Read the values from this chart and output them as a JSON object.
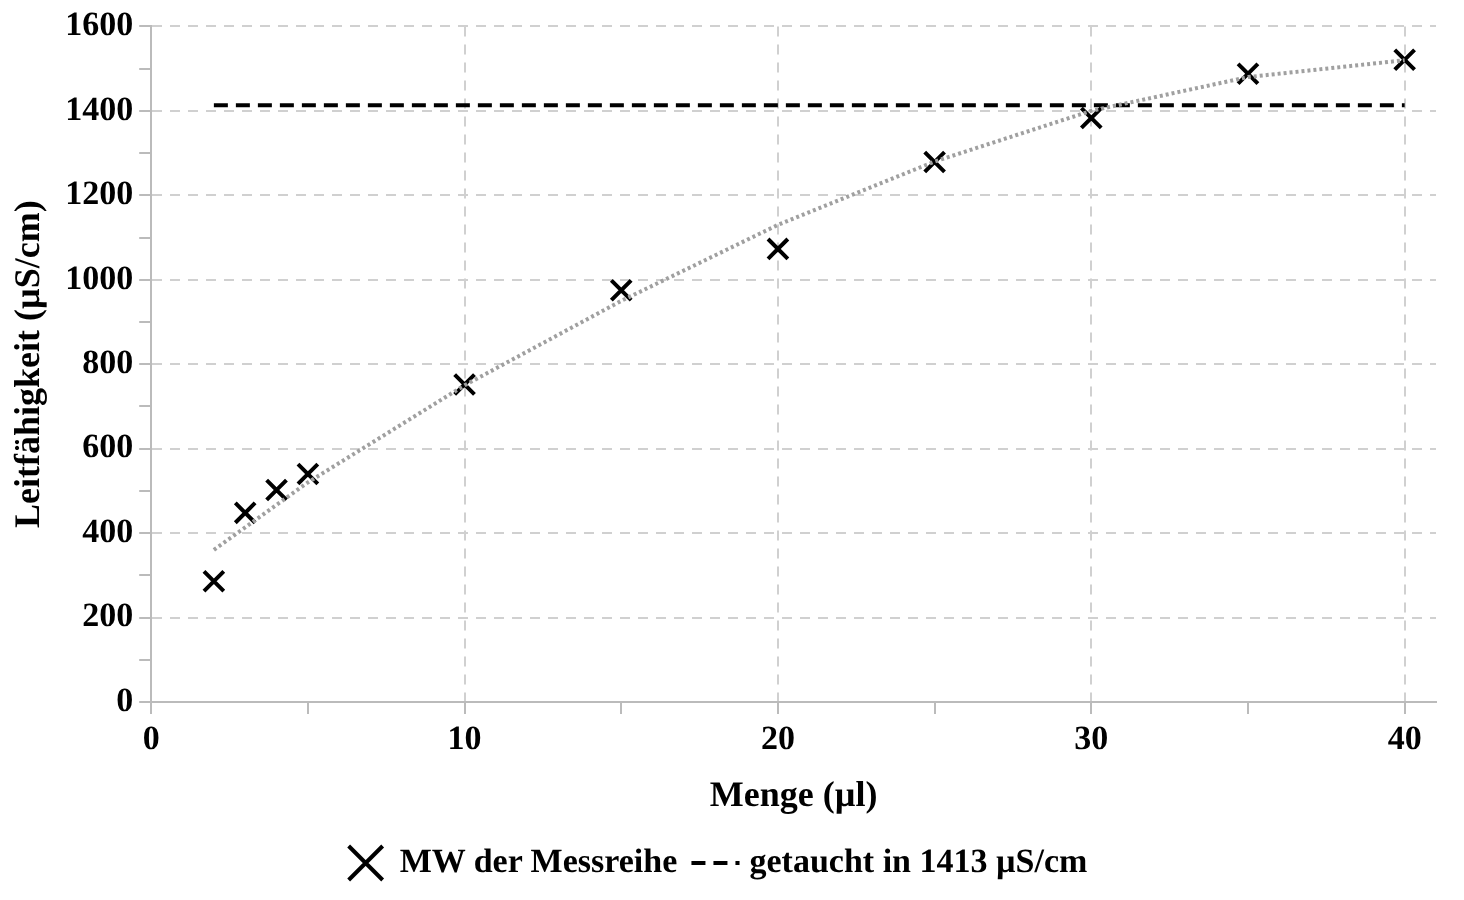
{
  "chart_data": {
    "type": "scatter",
    "xlabel": "Menge (µl)",
    "ylabel": "Leitfähigkeit (µS/cm)",
    "xlim": [
      0,
      41
    ],
    "xticks": [
      0,
      {
        "value": 5,
        "label": null
      },
      10,
      {
        "value": 15,
        "label": null
      },
      20,
      {
        "value": 25,
        "label": null
      },
      30,
      {
        "value": 35,
        "label": null
      },
      40
    ],
    "ylim": [
      0,
      1600
    ],
    "yticks": [
      0,
      {
        "value": 100,
        "label": null
      },
      200,
      {
        "value": 300,
        "label": null
      },
      400,
      {
        "value": 500,
        "label": null
      },
      600,
      {
        "value": 700,
        "label": null
      },
      800,
      {
        "value": 900,
        "label": null
      },
      1000,
      {
        "value": 1100,
        "label": null
      },
      1200,
      {
        "value": 1300,
        "label": null
      },
      1400,
      {
        "value": 1500,
        "label": null
      },
      1600
    ],
    "grid": true,
    "legend": "bottom",
    "series": [
      {
        "type": "line",
        "color": "#a0a0a0",
        "line_style": "dotted",
        "marker": "none",
        "x": [
          2,
          5,
          10,
          15,
          20,
          25,
          30,
          35,
          40
        ],
        "values": [
          360,
          520,
          750,
          950,
          1130,
          1280,
          1400,
          1480,
          1520
        ]
      },
      {
        "name": "MW der Messreihe",
        "color": "#000000",
        "marker": "cross",
        "x": [
          2,
          3,
          4,
          5,
          10,
          15,
          20,
          25,
          30,
          35,
          40
        ],
        "values": [
          286,
          448,
          502,
          540,
          752,
          975,
          1073,
          1279,
          1383,
          1488,
          1521
        ]
      },
      {
        "type": "line",
        "name": "getaucht in 1413 µS/cm",
        "color": "#000000",
        "line_style": "dashed",
        "marker": "none",
        "x": [
          2,
          40
        ],
        "values": [
          1413,
          1413
        ]
      }
    ]
  }
}
